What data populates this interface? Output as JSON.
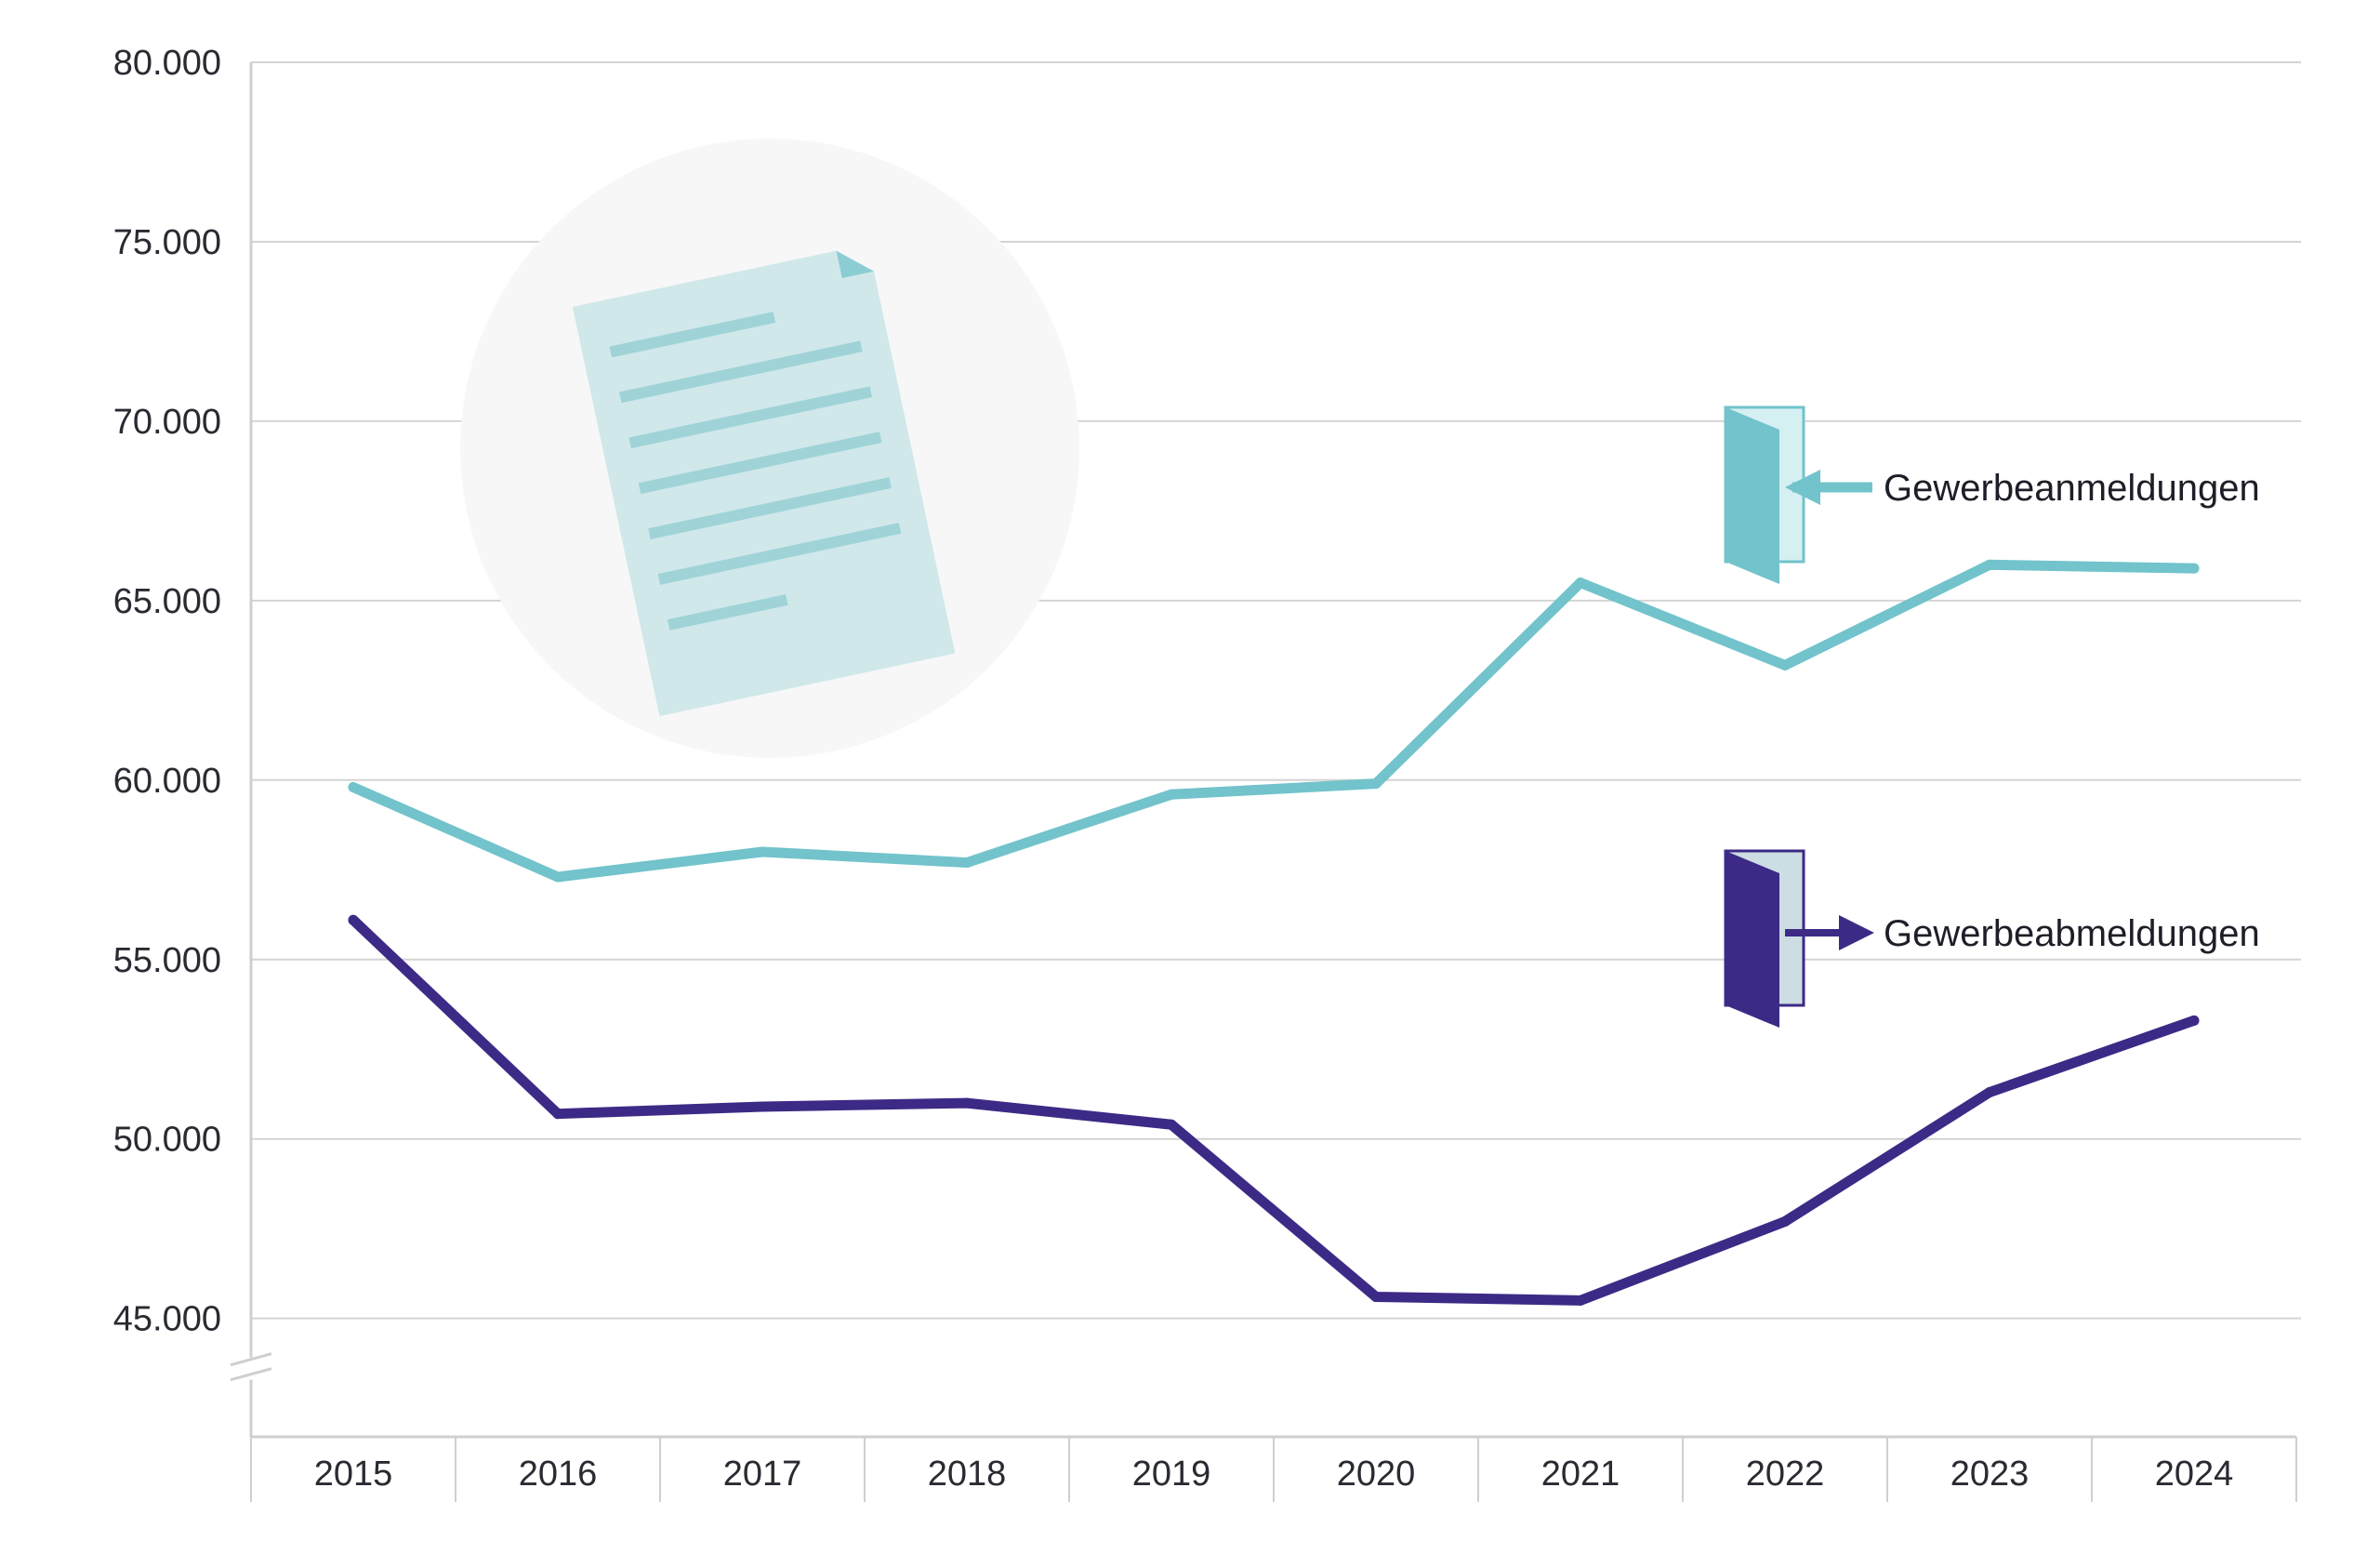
{
  "chart_data": {
    "type": "line",
    "title": "",
    "xlabel": "",
    "ylabel": "",
    "categories": [
      "2015",
      "2016",
      "2017",
      "2018",
      "2019",
      "2020",
      "2021",
      "2022",
      "2023",
      "2024"
    ],
    "yticks": [
      "45.000",
      "50.000",
      "55.000",
      "60.000",
      "65.000",
      "70.000",
      "75.000",
      "80.000"
    ],
    "ylim": [
      41700,
      80000
    ],
    "axis_break": true,
    "grid": true,
    "series": [
      {
        "name": "Gewerbeanmeldungen",
        "color": "#72c3cb",
        "icon": "door-entering-icon",
        "values": [
          59800,
          57300,
          58000,
          57700,
          59600,
          59900,
          65500,
          63200,
          66000,
          65900
        ]
      },
      {
        "name": "Gewerbeabmeldungen",
        "color": "#3d2a86",
        "icon": "door-leaving-icon",
        "values": [
          56100,
          50700,
          50900,
          51000,
          50400,
          45600,
          45500,
          47700,
          51300,
          53300
        ]
      }
    ],
    "decoration": "document-icon"
  }
}
